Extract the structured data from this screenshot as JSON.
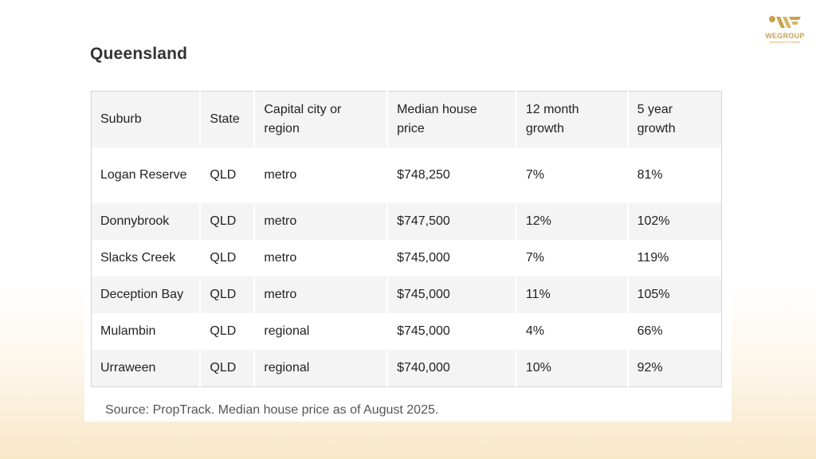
{
  "title": "Queensland",
  "logo": {
    "name": "WEGROUP",
    "tagline": "Investment & Finance",
    "color": "#c9a24c"
  },
  "table": {
    "headers": [
      "Suburb",
      "State",
      "Capital city or region",
      "Median house price",
      "12 month growth",
      "5 year growth"
    ],
    "rows": [
      [
        "Logan Reserve",
        "QLD",
        "metro",
        "$748,250",
        "7%",
        "81%"
      ],
      [
        "Donnybrook",
        "QLD",
        "metro",
        "$747,500",
        "12%",
        "102%"
      ],
      [
        "Slacks Creek",
        "QLD",
        "metro",
        "$745,000",
        "7%",
        "119%"
      ],
      [
        "Deception Bay",
        "QLD",
        "metro",
        "$745,000",
        "11%",
        "105%"
      ],
      [
        "Mulambin",
        "QLD",
        "regional",
        "$745,000",
        "4%",
        "66%"
      ],
      [
        "Urraween",
        "QLD",
        "regional",
        "$740,000",
        "10%",
        "92%"
      ]
    ]
  },
  "source": "Source: PropTrack. Median house price as of August 2025."
}
